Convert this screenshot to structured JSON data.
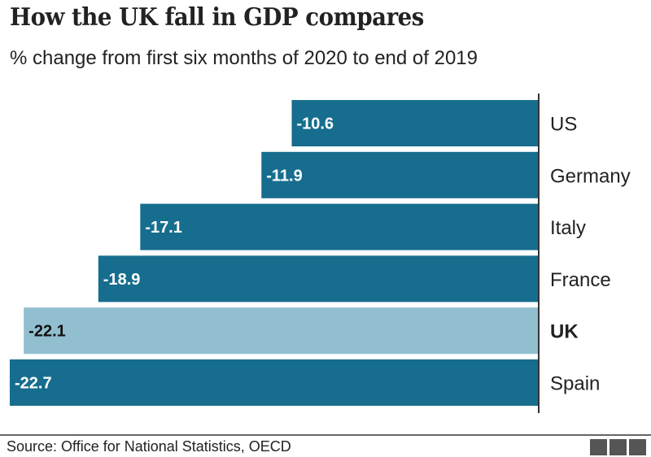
{
  "title": "How the UK fall in GDP compares",
  "subtitle": "% change from first six months of 2020 to end of 2019",
  "source": "Source: Office for National Statistics, OECD",
  "logo": "BBC",
  "colors": {
    "bar": "#176d8e",
    "highlight": "#92bfd0",
    "axis": "#333333"
  },
  "chart_data": {
    "type": "bar",
    "orientation": "horizontal",
    "categories": [
      "US",
      "Germany",
      "Italy",
      "France",
      "UK",
      "Spain"
    ],
    "values": [
      -10.6,
      -11.9,
      -17.1,
      -18.9,
      -22.1,
      -22.7
    ],
    "labels": [
      "-10.6",
      "-11.9",
      "-17.1",
      "-18.9",
      "-22.1",
      "-22.7"
    ],
    "highlight": "UK",
    "title": "How the UK fall in GDP compares",
    "subtitle": "% change from first six months of 2020 to end of 2019",
    "xlim": [
      -22.7,
      0
    ],
    "grid": false
  }
}
